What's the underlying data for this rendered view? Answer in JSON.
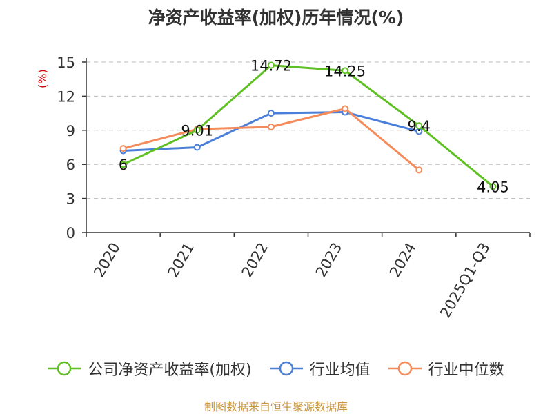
{
  "title": "净资产收益率(加权)历年情况(%)",
  "footer": "制图数据来自恒生聚源数据库",
  "colors": {
    "company": "#5ec022",
    "industry_avg": "#4a7fd9",
    "industry_median": "#f48b5a",
    "footer": "#c8963c",
    "grid": "#bbbbbb",
    "axis": "#333333"
  },
  "chart_data": {
    "type": "line",
    "title": "净资产收益率(加权)历年情况(%)",
    "ylabel": "(%)",
    "xlabel": "",
    "categories": [
      "2020",
      "2021",
      "2022",
      "2023",
      "2024",
      "2025Q1-Q3"
    ],
    "ylim": [
      0,
      15
    ],
    "yticks": [
      0,
      3,
      6,
      9,
      12,
      15
    ],
    "grid": true,
    "legend_position": "bottom",
    "series": [
      {
        "name": "公司净资产收益率(加权)",
        "key": "company",
        "values": [
          6,
          9.01,
          14.72,
          14.25,
          9.4,
          4.05
        ],
        "labels": [
          "6",
          "9.01",
          "14.72",
          "14.25",
          "9.4",
          "4.05"
        ]
      },
      {
        "name": "行业均值",
        "key": "industry_avg",
        "values": [
          7.2,
          7.5,
          10.5,
          10.6,
          8.9,
          null
        ],
        "labels": null
      },
      {
        "name": "行业中位数",
        "key": "industry_median",
        "values": [
          7.4,
          9.1,
          9.3,
          10.9,
          5.5,
          null
        ],
        "labels": null
      }
    ]
  }
}
